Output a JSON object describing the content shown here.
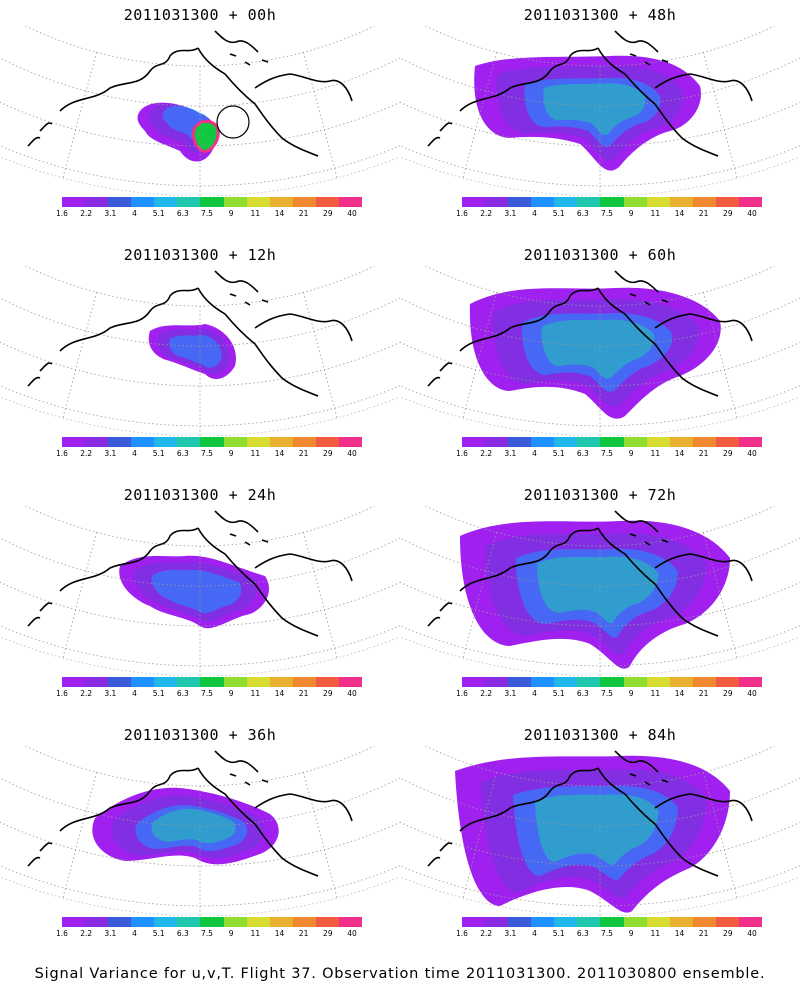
{
  "panels": [
    {
      "title": "2011031300 + 00h",
      "extent": 0,
      "hot": true
    },
    {
      "title": "2011031300 + 48h",
      "extent": 4
    },
    {
      "title": "2011031300 + 12h",
      "extent": 1
    },
    {
      "title": "2011031300 + 60h",
      "extent": 5
    },
    {
      "title": "2011031300 + 24h",
      "extent": 2
    },
    {
      "title": "2011031300 + 72h",
      "extent": 6
    },
    {
      "title": "2011031300 + 36h",
      "extent": 3
    },
    {
      "title": "2011031300 + 84h",
      "extent": 7
    }
  ],
  "colorbar": {
    "colors": [
      "#a020f0",
      "#8a2be2",
      "#3a5bd9",
      "#1e90ff",
      "#20b8e8",
      "#20c8b0",
      "#10c840",
      "#90dc30",
      "#d8dc30",
      "#e8b030",
      "#f08830",
      "#f05a40",
      "#f0308a"
    ],
    "labels": [
      "1.6",
      "2.2",
      "3.1",
      "4",
      "5.1",
      "6.3",
      "7.5",
      "9",
      "11",
      "14",
      "21",
      "29",
      "40"
    ]
  },
  "caption": "Signal Variance for u,v,T. Flight 37. Observation time 2011031300. 2011030800 ensemble."
}
